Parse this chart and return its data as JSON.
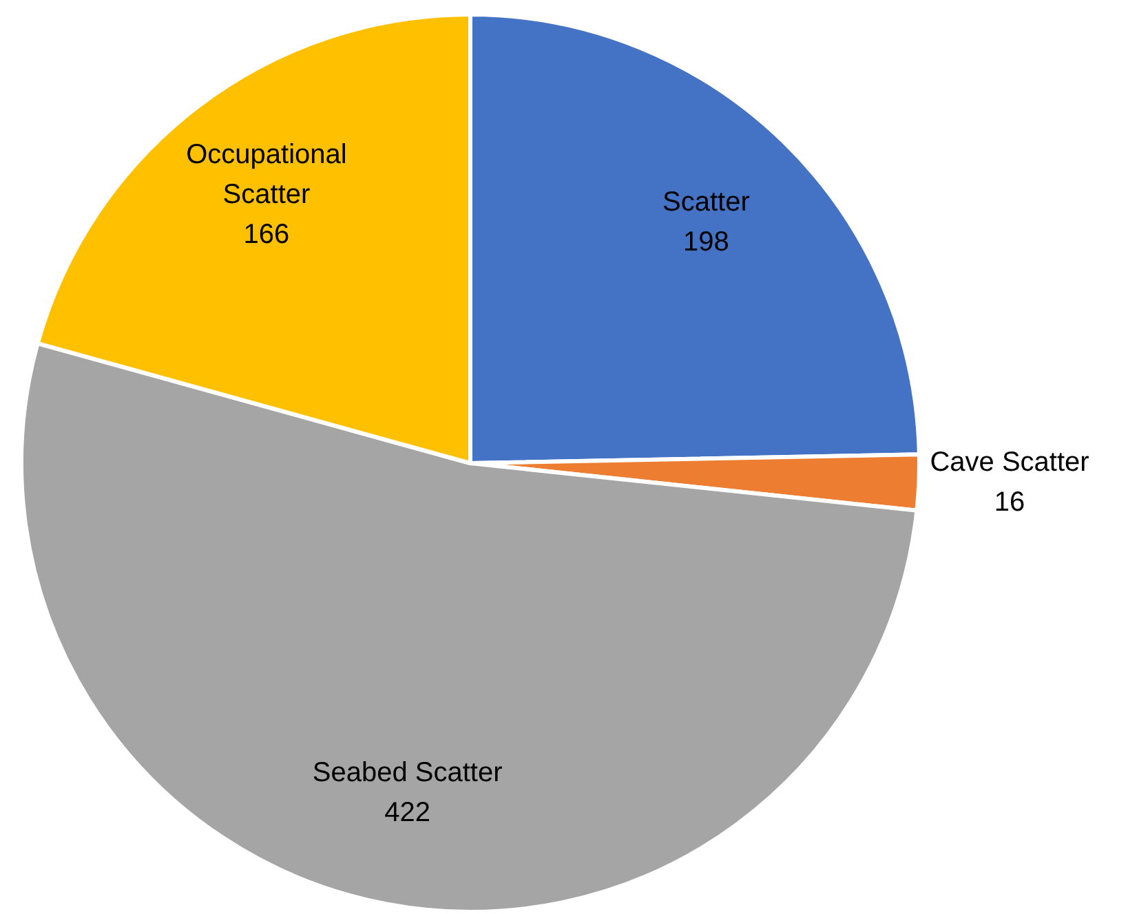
{
  "chart_data": {
    "type": "pie",
    "categories": [
      "Scatter",
      "Cave Scatter",
      "Seabed Scatter",
      "Occupational Scatter"
    ],
    "values": [
      198,
      16,
      422,
      166
    ],
    "colors": [
      "#4472c4",
      "#ed7d31",
      "#a5a5a5",
      "#ffc000"
    ],
    "data_labels": true
  }
}
